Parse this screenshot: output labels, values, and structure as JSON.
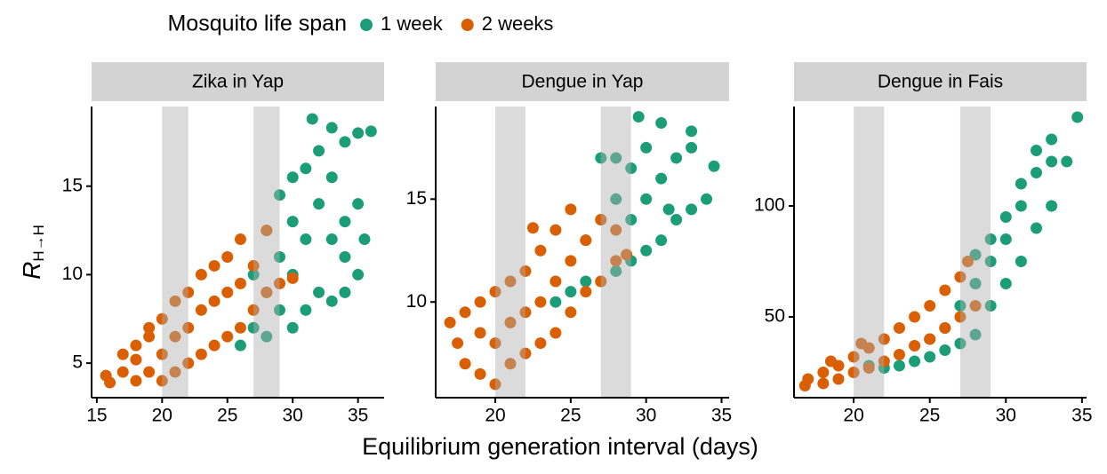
{
  "legend": {
    "title": "Mosquito life span"
  },
  "xlabel": "Equilibrium generation interval (days)",
  "ylabel": {
    "symbol": "R",
    "subscript": "H→H"
  },
  "chart_data": [
    {
      "type": "scatter",
      "title": "Zika in Yap",
      "xlim": [
        14.6,
        37.0
      ],
      "ylim": [
        3.05,
        19.5
      ],
      "xticks": [
        15,
        20,
        25,
        30,
        35
      ],
      "yticks": [
        5,
        10,
        15
      ],
      "bands": [
        [
          20,
          22
        ],
        [
          27,
          29
        ]
      ],
      "series": [
        {
          "name": "1 week",
          "color": "#1b9e77",
          "x": [
            26,
            27,
            28,
            28,
            29,
            29,
            30,
            30,
            30,
            31,
            31,
            31,
            31.5,
            32,
            32,
            32,
            33,
            33,
            33,
            34,
            34,
            34,
            35,
            35,
            35,
            35.5,
            29,
            28,
            27,
            36,
            33,
            30,
            34
          ],
          "y": [
            6,
            7,
            6.5,
            9,
            8,
            11,
            7,
            10,
            13,
            8,
            12,
            16,
            18.8,
            9,
            14,
            17,
            8.5,
            12,
            15.5,
            9,
            13,
            17.5,
            10,
            14,
            18,
            12,
            14.5,
            12.5,
            10,
            18.1,
            18.3,
            15.5,
            11
          ]
        },
        {
          "name": "2 weeks",
          "color": "#d95f02",
          "x": [
            15.7,
            16,
            17,
            17,
            18,
            18,
            19,
            19,
            20,
            20,
            20,
            21,
            21,
            21,
            22,
            22,
            22,
            23,
            23,
            23,
            24,
            24,
            25,
            25,
            25,
            26,
            26,
            26,
            27,
            27,
            28,
            28,
            29,
            30,
            24,
            19,
            18
          ],
          "y": [
            4.3,
            3.9,
            4.5,
            5.5,
            4,
            6,
            4.5,
            7,
            4,
            5.5,
            7.5,
            4.5,
            6.5,
            8.5,
            5,
            7,
            9,
            5.5,
            8,
            10,
            6,
            8.5,
            6.5,
            9,
            11,
            7,
            9.5,
            12,
            8,
            10.5,
            9,
            12.5,
            9.5,
            9.8,
            10.5,
            6.5,
            5.2
          ]
        }
      ]
    },
    {
      "type": "scatter",
      "title": "Dengue in Yap",
      "xlim": [
        16.05,
        35.5
      ],
      "ylim": [
        5.35,
        19.5
      ],
      "xticks": [
        20,
        25,
        30,
        35
      ],
      "yticks": [
        10,
        15
      ],
      "bands": [
        [
          20,
          22
        ],
        [
          27,
          29
        ]
      ],
      "series": [
        {
          "name": "1 week",
          "color": "#1b9e77",
          "x": [
            24,
            25,
            26,
            26,
            27,
            27,
            27,
            28,
            28,
            28,
            29,
            29,
            29,
            30,
            30,
            30,
            31,
            31,
            31,
            32,
            32,
            33,
            33,
            34,
            34.5,
            29.5,
            33,
            31.5
          ],
          "y": [
            10,
            10.5,
            11,
            13,
            11,
            14,
            17,
            11.5,
            15,
            17,
            12,
            14,
            16.5,
            12.5,
            15,
            17.5,
            13,
            16,
            18.7,
            14,
            17,
            14.5,
            17.5,
            15,
            16.6,
            19,
            18.3,
            14.5
          ]
        },
        {
          "name": "2 weeks",
          "color": "#d95f02",
          "x": [
            17,
            17.5,
            18,
            18,
            19,
            19,
            19,
            20,
            20,
            20,
            21,
            21,
            21,
            22,
            22,
            22,
            23,
            23,
            23,
            24,
            24,
            24,
            25,
            25,
            25,
            26,
            26,
            27,
            27,
            28,
            28,
            28.7,
            22.5
          ],
          "y": [
            9,
            8,
            7,
            9.5,
            6.5,
            8.5,
            10,
            6,
            8,
            10.5,
            7,
            9,
            11,
            7.5,
            9.5,
            11.5,
            8,
            10,
            12.5,
            8.5,
            11,
            13.5,
            9.5,
            12,
            14.5,
            10.5,
            13,
            11,
            14,
            12,
            13.5,
            12.3,
            13.6
          ]
        }
      ]
    },
    {
      "type": "scatter",
      "title": "Dengue in Fais",
      "xlim": [
        16.08,
        35.3
      ],
      "ylim": [
        13.6,
        144.8
      ],
      "xticks": [
        20,
        25,
        30,
        35
      ],
      "yticks": [
        50,
        100
      ],
      "bands": [
        [
          20,
          22
        ],
        [
          27,
          29
        ]
      ],
      "series": [
        {
          "name": "1 week",
          "color": "#1b9e77",
          "x": [
            21,
            22,
            23,
            24,
            25,
            25,
            26,
            26,
            27,
            27,
            28,
            28,
            28,
            29,
            29,
            30,
            30,
            30,
            31,
            31,
            32,
            32,
            32,
            33,
            33,
            33,
            34,
            34.7,
            31,
            29
          ],
          "y": [
            28,
            27,
            28,
            30,
            32,
            40,
            35,
            45,
            38,
            55,
            42,
            65,
            78,
            55,
            75,
            65,
            85,
            95,
            75,
            100,
            90,
            115,
            125,
            100,
            120,
            130,
            120,
            140,
            110,
            85
          ]
        },
        {
          "name": "2 weeks",
          "color": "#d95f02",
          "x": [
            16.8,
            17,
            18,
            18,
            19,
            19,
            20,
            20,
            21,
            21,
            22,
            22,
            23,
            23,
            24,
            24,
            25,
            25,
            26,
            26,
            27,
            27,
            27.5,
            28,
            18.5,
            20.5
          ],
          "y": [
            19,
            22,
            20,
            25,
            22,
            28,
            25,
            32,
            27,
            36,
            30,
            40,
            33,
            45,
            37,
            50,
            40,
            55,
            45,
            62,
            50,
            68,
            75,
            55,
            30,
            38
          ]
        }
      ]
    }
  ]
}
